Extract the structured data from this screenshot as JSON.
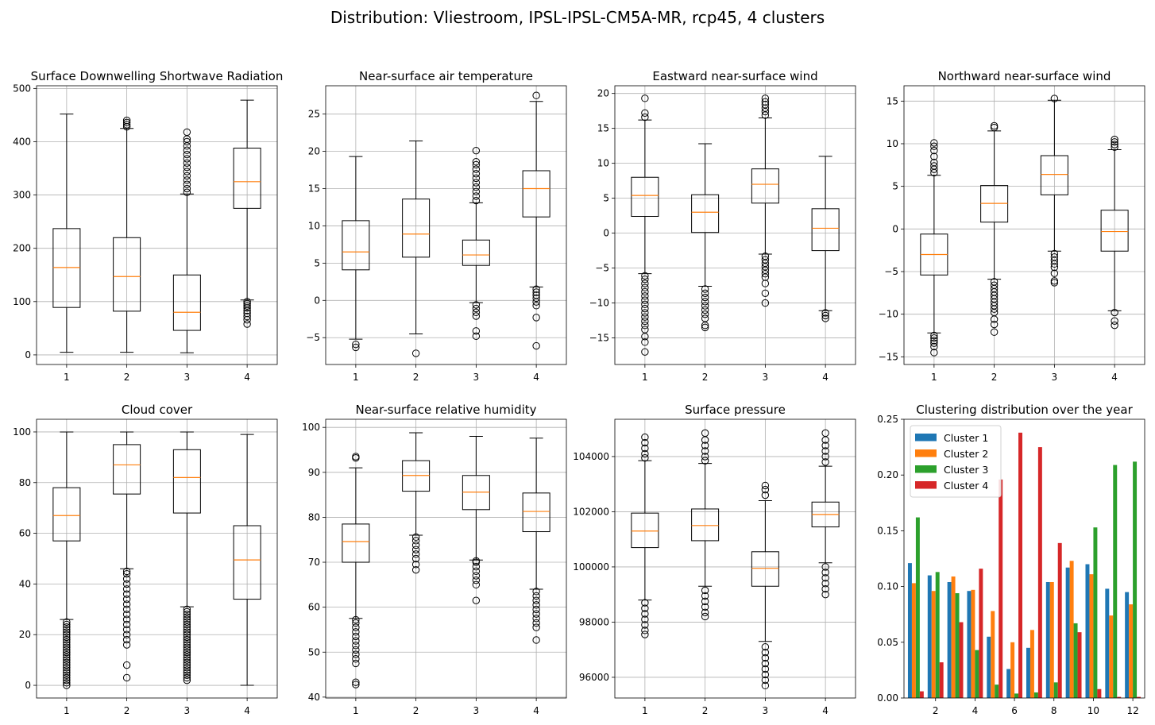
{
  "figure": {
    "title": "Distribution: Vliestroom, IPSL-IPSL-CM5A-MR, rcp45, 4 clusters"
  },
  "colors": {
    "median": "#ff7f0e",
    "grid": "#b0b0b0",
    "cluster1": "#1f77b4",
    "cluster2": "#ff7f0e",
    "cluster3": "#2ca02c",
    "cluster4": "#d62728"
  },
  "chart_data": [
    {
      "type": "box",
      "title": "Surface Downwelling Shortwave Radiation",
      "categories": [
        "1",
        "2",
        "3",
        "4"
      ],
      "ylim": [
        -18,
        505
      ],
      "yticks": [
        0,
        100,
        200,
        300,
        400,
        500
      ],
      "yticklabels": [
        "0",
        "100",
        "200",
        "300",
        "400",
        "500"
      ],
      "boxes": [
        {
          "whislo": 5,
          "q1": 89,
          "med": 164,
          "q3": 237,
          "whishi": 452,
          "fliers": []
        },
        {
          "whislo": 5,
          "q1": 82,
          "med": 147,
          "q3": 220,
          "whishi": 425,
          "fliers": [
            428,
            432,
            436,
            440
          ]
        },
        {
          "whislo": 4,
          "q1": 46,
          "med": 80,
          "q3": 150,
          "whishi": 302,
          "fliers": [
            305,
            312,
            320,
            328,
            336,
            344,
            352,
            360,
            368,
            376,
            384,
            392,
            400,
            405,
            418
          ]
        },
        {
          "whislo": 103,
          "q1": 275,
          "med": 325,
          "q3": 388,
          "whishi": 478,
          "fliers": [
            58,
            66,
            72,
            78,
            83,
            88,
            92,
            96,
            100
          ]
        }
      ]
    },
    {
      "type": "box",
      "title": "Near-surface air temperature",
      "categories": [
        "1",
        "2",
        "3",
        "4"
      ],
      "ylim": [
        -8.6,
        28.8
      ],
      "yticks": [
        -5,
        0,
        5,
        10,
        15,
        20,
        25
      ],
      "yticklabels": [
        "−5",
        "0",
        "5",
        "10",
        "15",
        "20",
        "25"
      ],
      "boxes": [
        {
          "whislo": -5.2,
          "q1": 4.1,
          "med": 6.5,
          "q3": 10.7,
          "whishi": 19.3,
          "fliers": [
            -5.9,
            -6.3
          ]
        },
        {
          "whislo": -4.5,
          "q1": 5.8,
          "med": 8.9,
          "q3": 13.6,
          "whishi": 21.4,
          "fliers": [
            -7.1
          ]
        },
        {
          "whislo": -0.3,
          "q1": 4.7,
          "med": 6.1,
          "q3": 8.1,
          "whishi": 13.1,
          "fliers": [
            -0.6,
            -1.1,
            -1.6,
            -2.1,
            -4.1,
            -4.8,
            13.4,
            14.0,
            14.6,
            15.2,
            15.8,
            16.4,
            17.0,
            17.6,
            18.2,
            18.6,
            20.1
          ]
        },
        {
          "whislo": 1.8,
          "q1": 11.2,
          "med": 15.0,
          "q3": 17.4,
          "whishi": 26.7,
          "fliers": [
            -6.1,
            -2.3,
            -0.7,
            -0.2,
            0.3,
            0.7,
            1.1,
            1.5,
            27.5
          ]
        }
      ]
    },
    {
      "type": "box",
      "title": "Eastward near-surface wind",
      "categories": [
        "1",
        "2",
        "3",
        "4"
      ],
      "ylim": [
        -18.8,
        21.1
      ],
      "yticks": [
        -15,
        -10,
        -5,
        0,
        5,
        10,
        15,
        20
      ],
      "yticklabels": [
        "−15",
        "−10",
        "−5",
        "0",
        "5",
        "10",
        "15",
        "20"
      ],
      "boxes": [
        {
          "whislo": -5.8,
          "q1": 2.4,
          "med": 5.4,
          "q3": 8.0,
          "whishi": 16.2,
          "fliers": [
            -6.1,
            -6.6,
            -7.2,
            -7.8,
            -8.4,
            -9.0,
            -9.6,
            -10.2,
            -10.8,
            -11.4,
            -12.0,
            -12.6,
            -13.2,
            -13.8,
            -14.8,
            -15.6,
            -17.0,
            16.6,
            17.2,
            19.3
          ]
        },
        {
          "whislo": -7.6,
          "q1": 0.1,
          "med": 3.0,
          "q3": 5.5,
          "whishi": 12.8,
          "fliers": [
            -8.0,
            -8.6,
            -9.2,
            -9.8,
            -10.4,
            -11.0,
            -11.6,
            -12.2,
            -13.2,
            -13.5
          ]
        },
        {
          "whislo": -3.0,
          "q1": 4.3,
          "med": 7.0,
          "q3": 9.2,
          "whishi": 16.5,
          "fliers": [
            -3.3,
            -3.8,
            -4.3,
            -4.8,
            -5.3,
            -5.8,
            -6.3,
            -7.2,
            -8.6,
            -10.0,
            16.9,
            17.4,
            17.9,
            18.4,
            18.8,
            19.3
          ]
        },
        {
          "whislo": -11.1,
          "q1": -2.5,
          "med": 0.7,
          "q3": 3.5,
          "whishi": 11.0,
          "fliers": [
            -11.4,
            -11.8,
            -12.2
          ]
        }
      ]
    },
    {
      "type": "box",
      "title": "Northward near-surface wind",
      "categories": [
        "1",
        "2",
        "3",
        "4"
      ],
      "ylim": [
        -15.9,
        16.8
      ],
      "yticks": [
        -15,
        -10,
        -5,
        0,
        5,
        10,
        15
      ],
      "yticklabels": [
        "−15",
        "−10",
        "−5",
        "0",
        "5",
        "10",
        "15"
      ],
      "boxes": [
        {
          "whislo": -12.2,
          "q1": -5.4,
          "med": -3.0,
          "q3": -0.6,
          "whishi": 6.3,
          "fliers": [
            -12.5,
            -12.8,
            -13.1,
            -13.4,
            -13.8,
            -14.5,
            6.6,
            7.0,
            7.4,
            7.8,
            8.5,
            9.2,
            9.7,
            10.1
          ]
        },
        {
          "whislo": -5.9,
          "q1": 0.8,
          "med": 3.0,
          "q3": 5.1,
          "whishi": 11.5,
          "fliers": [
            -6.2,
            -6.6,
            -7.0,
            -7.4,
            -7.8,
            -8.2,
            -8.6,
            -9.0,
            -9.4,
            -9.8,
            -10.6,
            -11.2,
            -12.1,
            11.9,
            12.1
          ]
        },
        {
          "whislo": -2.6,
          "q1": 4.0,
          "med": 6.4,
          "q3": 8.6,
          "whishi": 15.1,
          "fliers": [
            -2.9,
            -3.3,
            -3.7,
            -4.1,
            -4.5,
            -5.2,
            -6.1,
            -6.3,
            15.3
          ]
        },
        {
          "whislo": -9.6,
          "q1": -2.6,
          "med": -0.3,
          "q3": 2.2,
          "whishi": 9.3,
          "fliers": [
            -9.8,
            -10.8,
            -11.3,
            9.6,
            9.9,
            10.2,
            10.5
          ]
        }
      ]
    },
    {
      "type": "box",
      "title": "Cloud cover",
      "categories": [
        "1",
        "2",
        "3",
        "4"
      ],
      "ylim": [
        -5,
        105
      ],
      "yticks": [
        0,
        20,
        40,
        60,
        80,
        100
      ],
      "yticklabels": [
        "0",
        "20",
        "40",
        "60",
        "80",
        "100"
      ],
      "boxes": [
        {
          "whislo": 26,
          "q1": 57,
          "med": 67,
          "q3": 78,
          "whishi": 100,
          "fliers": [
            0,
            1,
            2,
            3,
            4,
            5,
            6,
            7,
            8,
            9,
            10,
            11,
            12,
            13,
            14,
            15,
            16,
            17,
            18,
            19,
            20,
            21,
            22,
            23,
            24,
            25
          ]
        },
        {
          "whislo": 46,
          "q1": 75.5,
          "med": 87,
          "q3": 95,
          "whishi": 100,
          "fliers": [
            3,
            8,
            16,
            18,
            20,
            22,
            24,
            26,
            28,
            30,
            32,
            34,
            36,
            38,
            40,
            42,
            44,
            45
          ]
        },
        {
          "whislo": 31,
          "q1": 68,
          "med": 82,
          "q3": 93,
          "whishi": 100,
          "fliers": [
            2,
            3,
            4,
            5,
            6,
            7,
            8,
            9,
            10,
            11,
            12,
            13,
            14,
            15,
            16,
            17,
            18,
            19,
            20,
            21,
            22,
            23,
            24,
            25,
            26,
            27,
            28,
            29,
            30
          ]
        },
        {
          "whislo": 0,
          "q1": 34,
          "med": 49.5,
          "q3": 63,
          "whishi": 99,
          "fliers": []
        }
      ]
    },
    {
      "type": "box",
      "title": "Near-surface relative humidity",
      "categories": [
        "1",
        "2",
        "3",
        "4"
      ],
      "ylim": [
        39.8,
        101.8
      ],
      "yticks": [
        40,
        50,
        60,
        70,
        80,
        90,
        100
      ],
      "yticklabels": [
        "40",
        "50",
        "60",
        "70",
        "80",
        "90",
        "100"
      ],
      "boxes": [
        {
          "whislo": 57.5,
          "q1": 70,
          "med": 74.6,
          "q3": 78.5,
          "whishi": 91,
          "fliers": [
            42.8,
            43.3,
            47.5,
            48.5,
            49.5,
            50.5,
            51.5,
            52.5,
            53.5,
            54.5,
            55.5,
            56.5,
            57.2,
            93.2,
            93.5
          ]
        },
        {
          "whislo": 76,
          "q1": 85.8,
          "med": 89.3,
          "q3": 92.6,
          "whishi": 98.8,
          "fliers": [
            68.3,
            69.5,
            70.8,
            71.8,
            72.8,
            73.8,
            74.8,
            75.6
          ]
        },
        {
          "whislo": 70.5,
          "q1": 81.7,
          "med": 85.6,
          "q3": 89.3,
          "whishi": 98,
          "fliers": [
            61.5,
            65,
            66,
            67,
            68,
            69,
            70,
            70.3
          ]
        },
        {
          "whislo": 64,
          "q1": 76.8,
          "med": 81.3,
          "q3": 85.4,
          "whishi": 97.6,
          "fliers": [
            52.7,
            55.5,
            56.5,
            57.5,
            58.5,
            59.5,
            60.5,
            61.5,
            62.5,
            63.5
          ]
        }
      ]
    },
    {
      "type": "box",
      "title": "Surface pressure",
      "categories": [
        "1",
        "2",
        "3",
        "4"
      ],
      "ylim": [
        95250,
        105350
      ],
      "yticks": [
        96000,
        98000,
        100000,
        102000,
        104000
      ],
      "yticklabels": [
        "96000",
        "98000",
        "100000",
        "102000",
        "104000"
      ],
      "boxes": [
        {
          "whislo": 98800,
          "q1": 100700,
          "med": 101300,
          "q3": 101950,
          "whishi": 103850,
          "fliers": [
            97550,
            97700,
            97900,
            98100,
            98300,
            98500,
            98700,
            103950,
            104100,
            104300,
            104500,
            104700
          ]
        },
        {
          "whislo": 99300,
          "q1": 100950,
          "med": 101500,
          "q3": 102100,
          "whishi": 103750,
          "fliers": [
            98200,
            98350,
            98550,
            98750,
            98950,
            99150,
            103850,
            104000,
            104200,
            104400,
            104600,
            104850
          ]
        },
        {
          "whislo": 97300,
          "q1": 99300,
          "med": 99950,
          "q3": 100550,
          "whishi": 102400,
          "fliers": [
            95700,
            95900,
            96100,
            96300,
            96500,
            96700,
            96900,
            97100,
            102600,
            102800,
            102950
          ]
        },
        {
          "whislo": 100150,
          "q1": 101450,
          "med": 101900,
          "q3": 102350,
          "whishi": 103650,
          "fliers": [
            99000,
            99200,
            99400,
            99600,
            99800,
            100000,
            103800,
            104000,
            104200,
            104400,
            104600,
            104850
          ]
        }
      ]
    },
    {
      "type": "bar",
      "title": "Clustering distribution over the year",
      "x": [
        1,
        2,
        3,
        4,
        5,
        6,
        7,
        8,
        9,
        10,
        11,
        12
      ],
      "xticks": [
        2,
        4,
        6,
        8,
        10,
        12
      ],
      "xticklabels": [
        "2",
        "4",
        "6",
        "8",
        "10",
        "12"
      ],
      "ylim": [
        0,
        0.25
      ],
      "yticks": [
        0,
        0.05,
        0.1,
        0.15,
        0.2,
        0.25
      ],
      "yticklabels": [
        "0.00",
        "0.05",
        "0.10",
        "0.15",
        "0.20",
        "0.25"
      ],
      "legend_position": "upper-left",
      "series": [
        {
          "name": "Cluster 1",
          "values": [
            0.121,
            0.11,
            0.104,
            0.096,
            0.055,
            0.026,
            0.045,
            0.104,
            0.117,
            0.12,
            0.098,
            0.095
          ]
        },
        {
          "name": "Cluster 2",
          "values": [
            0.103,
            0.096,
            0.109,
            0.097,
            0.078,
            0.05,
            0.061,
            0.104,
            0.123,
            0.111,
            0.074,
            0.084
          ]
        },
        {
          "name": "Cluster 3",
          "values": [
            0.162,
            0.113,
            0.094,
            0.043,
            0.012,
            0.004,
            0.005,
            0.014,
            0.067,
            0.153,
            0.209,
            0.212
          ]
        },
        {
          "name": "Cluster 4",
          "values": [
            0.006,
            0.032,
            0.068,
            0.116,
            0.196,
            0.238,
            0.225,
            0.139,
            0.059,
            0.008,
            0.001,
            0.001
          ]
        }
      ]
    }
  ]
}
